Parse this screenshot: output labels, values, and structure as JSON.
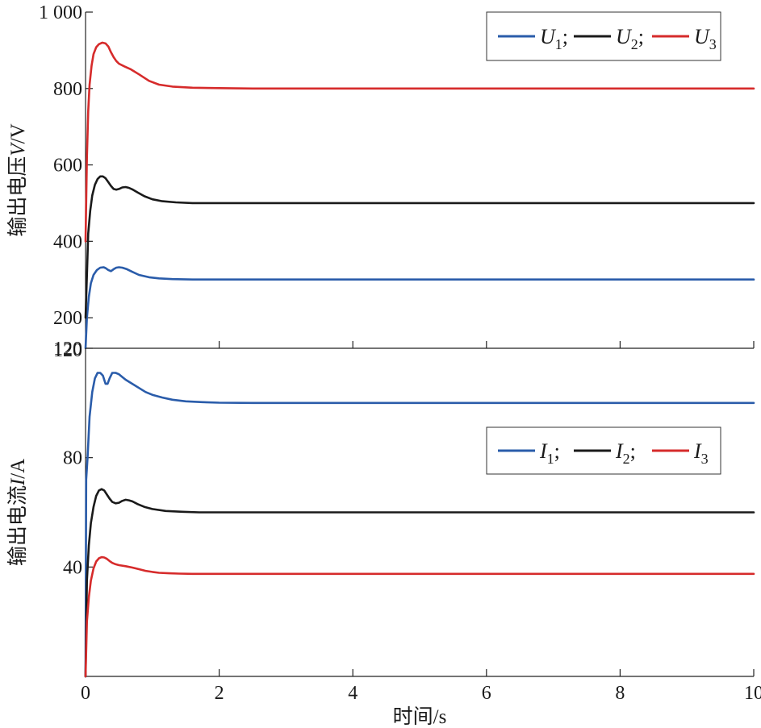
{
  "chart_data": [
    {
      "type": "line",
      "panel": "top",
      "ylabel_text": "输出电压",
      "ylabel_var": "V",
      "ylabel_unit": "/V",
      "xlim": [
        0,
        10
      ],
      "ylim": [
        120,
        1000
      ],
      "yticks": [
        200,
        400,
        600,
        800,
        1000
      ],
      "ytick_labels": [
        "200",
        "400",
        "600",
        "800",
        "1 000"
      ],
      "bottom_label": "120",
      "xticks": [
        0,
        2,
        4,
        6,
        8,
        10
      ],
      "legend_position": "top-right",
      "legend_separator": ";",
      "series": [
        {
          "name": "U",
          "sub": "1",
          "color": "#2a5caa",
          "x": [
            0,
            0.02,
            0.05,
            0.08,
            0.12,
            0.17,
            0.22,
            0.27,
            0.3,
            0.34,
            0.38,
            0.42,
            0.46,
            0.5,
            0.55,
            0.62,
            0.7,
            0.8,
            0.95,
            1.1,
            1.3,
            1.6,
            2.0,
            2.5,
            3,
            4,
            6,
            8,
            10
          ],
          "y": [
            120,
            200,
            255,
            290,
            312,
            325,
            331,
            332,
            330,
            325,
            322,
            327,
            331,
            332,
            331,
            327,
            320,
            312,
            306,
            303,
            301,
            300,
            300,
            300,
            300,
            300,
            300,
            300,
            300
          ]
        },
        {
          "name": "U",
          "sub": "2",
          "color": "#1a1a1a",
          "x": [
            0,
            0.02,
            0.04,
            0.07,
            0.1,
            0.14,
            0.18,
            0.22,
            0.26,
            0.3,
            0.34,
            0.38,
            0.42,
            0.46,
            0.5,
            0.55,
            0.6,
            0.65,
            0.7,
            0.78,
            0.88,
            1.0,
            1.15,
            1.35,
            1.6,
            2.0,
            3,
            4,
            6,
            8,
            10
          ],
          "y": [
            200,
            310,
            420,
            480,
            520,
            548,
            563,
            570,
            570,
            565,
            555,
            545,
            537,
            535,
            537,
            541,
            542,
            540,
            536,
            528,
            518,
            510,
            505,
            502,
            500,
            500,
            500,
            500,
            500,
            500,
            500
          ]
        },
        {
          "name": "U",
          "sub": "3",
          "color": "#d62b2b",
          "x": [
            0,
            0.02,
            0.04,
            0.06,
            0.09,
            0.12,
            0.16,
            0.2,
            0.25,
            0.3,
            0.34,
            0.38,
            0.42,
            0.46,
            0.5,
            0.58,
            0.68,
            0.8,
            0.95,
            1.1,
            1.3,
            1.6,
            2.0,
            2.5,
            3,
            4,
            6,
            8,
            10
          ],
          "y": [
            400,
            620,
            740,
            810,
            860,
            890,
            908,
            916,
            920,
            918,
            910,
            895,
            882,
            872,
            865,
            858,
            850,
            837,
            820,
            810,
            805,
            802,
            801,
            800,
            800,
            800,
            800,
            800,
            800
          ]
        }
      ]
    },
    {
      "type": "line",
      "panel": "bottom",
      "ylabel_text": "输出电流",
      "ylabel_var": "I",
      "ylabel_unit": "/A",
      "xlabel": "时间/s",
      "xlim": [
        0,
        10
      ],
      "ylim": [
        0,
        120
      ],
      "yticks": [
        40,
        80,
        120
      ],
      "ytick_labels": [
        "40",
        "80",
        "120"
      ],
      "xticks": [
        0,
        2,
        4,
        6,
        8,
        10
      ],
      "xtick_labels": [
        "0",
        "2",
        "4",
        "6",
        "8",
        "10"
      ],
      "legend_position": "center-right",
      "legend_separator": ";",
      "series": [
        {
          "name": "I",
          "sub": "1",
          "color": "#2a5caa",
          "x": [
            0,
            0.01,
            0.03,
            0.06,
            0.1,
            0.14,
            0.18,
            0.22,
            0.26,
            0.3,
            0.33,
            0.36,
            0.4,
            0.45,
            0.5,
            0.55,
            0.6,
            0.7,
            0.8,
            0.9,
            1.0,
            1.15,
            1.3,
            1.5,
            1.75,
            2.0,
            2.5,
            3,
            4,
            6,
            8,
            10
          ],
          "y": [
            0,
            72,
            80,
            95,
            104,
            109,
            111,
            111,
            110,
            107,
            107,
            109,
            111,
            111,
            110.5,
            109.5,
            108.5,
            107,
            105.5,
            104,
            103,
            102,
            101.2,
            100.6,
            100.3,
            100.1,
            100,
            100,
            100,
            100,
            100,
            100
          ]
        },
        {
          "name": "I",
          "sub": "2",
          "color": "#1a1a1a",
          "x": [
            0,
            0.02,
            0.05,
            0.08,
            0.12,
            0.16,
            0.2,
            0.24,
            0.28,
            0.32,
            0.36,
            0.4,
            0.45,
            0.5,
            0.55,
            0.6,
            0.65,
            0.7,
            0.78,
            0.88,
            1.0,
            1.2,
            1.45,
            1.7,
            2.0,
            3,
            4,
            6,
            8,
            10
          ],
          "y": [
            0,
            35,
            48,
            56,
            62,
            66,
            68,
            68.5,
            68,
            66.5,
            65,
            63.8,
            63.3,
            63.5,
            64.2,
            64.6,
            64.4,
            64,
            63,
            62,
            61.2,
            60.5,
            60.2,
            60,
            60,
            60,
            60,
            60,
            60,
            60
          ]
        },
        {
          "name": "I",
          "sub": "3",
          "color": "#d62b2b",
          "x": [
            0,
            0.02,
            0.05,
            0.08,
            0.12,
            0.16,
            0.2,
            0.24,
            0.28,
            0.32,
            0.36,
            0.4,
            0.45,
            0.5,
            0.6,
            0.7,
            0.8,
            0.9,
            1.0,
            1.1,
            1.25,
            1.4,
            1.6,
            2.0,
            3,
            4,
            6,
            8,
            10
          ],
          "y": [
            0,
            20,
            29,
            35,
            39.5,
            42,
            43.2,
            43.6,
            43.5,
            43,
            42.2,
            41.5,
            41,
            40.7,
            40.3,
            39.8,
            39.2,
            38.6,
            38.2,
            37.9,
            37.7,
            37.6,
            37.5,
            37.5,
            37.5,
            37.5,
            37.5,
            37.5,
            37.5
          ]
        }
      ]
    }
  ]
}
